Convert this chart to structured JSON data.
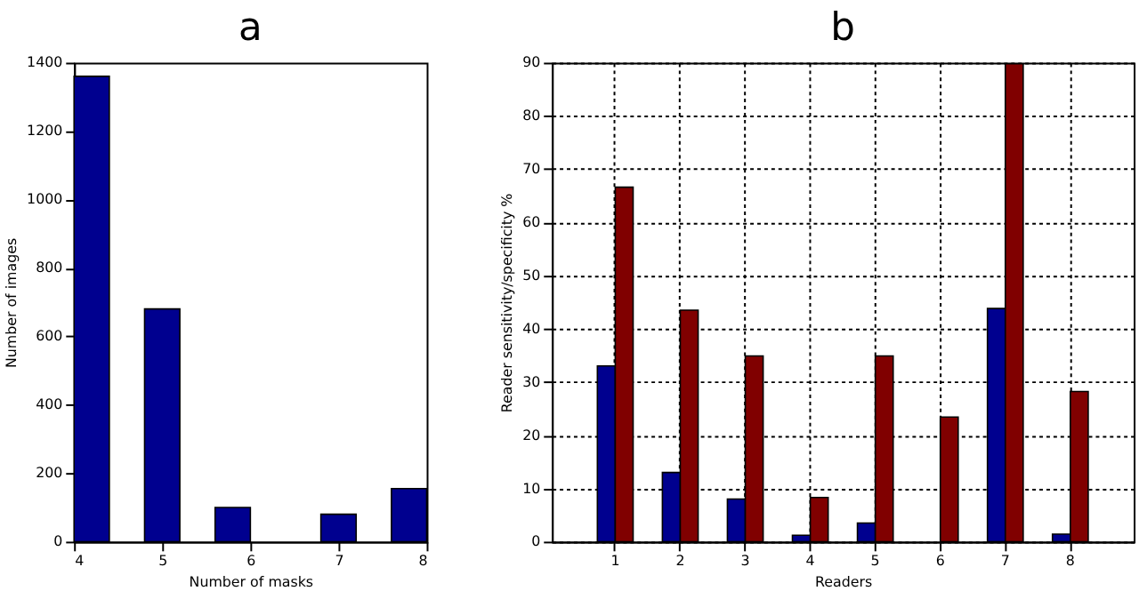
{
  "chart_data": [
    {
      "type": "histogram",
      "title": "a",
      "xlabel": "Number of masks",
      "ylabel": "Number of images",
      "bins": [
        4,
        4.4,
        4.8,
        5.2,
        5.6,
        6,
        6.4,
        6.8,
        7.2,
        7.6,
        8
      ],
      "values": [
        1360,
        0,
        680,
        0,
        100,
        0,
        0,
        80,
        0,
        155
      ],
      "color": "#00008f",
      "xlim": [
        4,
        8
      ],
      "xticks": [
        4,
        5,
        6,
        7,
        8
      ],
      "ylim": [
        0,
        1400
      ],
      "yticks": [
        0,
        200,
        400,
        600,
        800,
        1000,
        1200,
        1400
      ],
      "grid": false
    },
    {
      "type": "bar",
      "title": "b",
      "xlabel": "Readers",
      "ylabel": "Reader sensitivity/specificity %",
      "categories": [
        "1",
        "2",
        "3",
        "4",
        "5",
        "6",
        "7",
        "8"
      ],
      "series": [
        {
          "color": "#00008f",
          "values": [
            33,
            13,
            8,
            1.2,
            3.5,
            0,
            43.8,
            1.4
          ]
        },
        {
          "color": "#800000",
          "values": [
            66.6,
            43.5,
            34.9,
            8.3,
            34.9,
            23.4,
            89.8,
            28.2
          ]
        }
      ],
      "ylim": [
        0,
        90
      ],
      "yticks": [
        0,
        10,
        20,
        30,
        40,
        50,
        60,
        70,
        80,
        90
      ],
      "grid": true
    }
  ]
}
